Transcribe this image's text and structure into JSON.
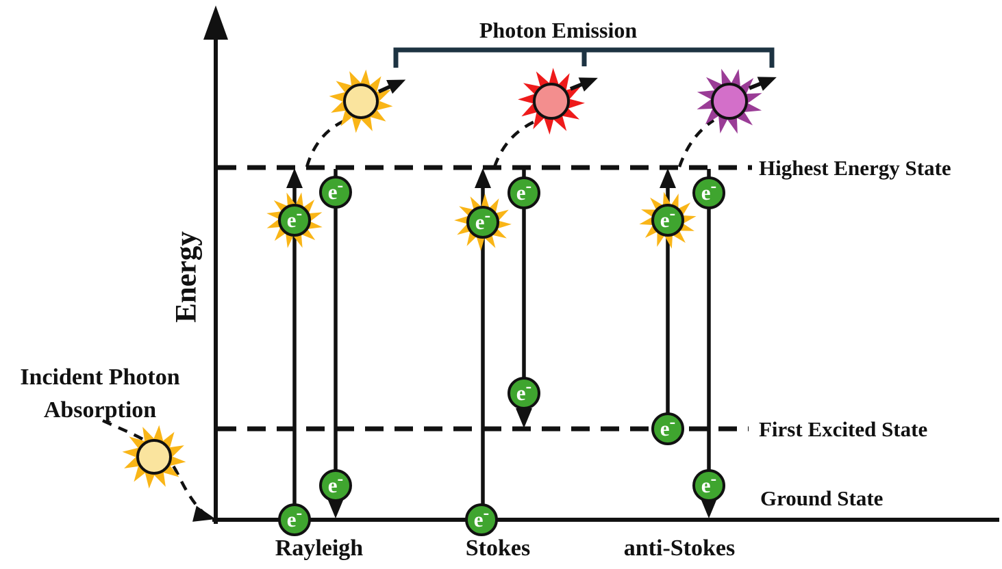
{
  "labels": {
    "photon_emission": "Photon Emission",
    "energy": "Energy",
    "incident_line1": "Incident Photon",
    "incident_line2": "Absorption",
    "highest_state": "Highest Energy State",
    "first_excited_state": "First Excited State",
    "ground_state": "Ground State",
    "rayleigh": "Rayleigh",
    "stokes": "Stokes",
    "anti_stokes": "anti-Stokes",
    "electron_e": "e",
    "electron_minus": "-"
  },
  "colors": {
    "photon_yellow_spikes": "#f9b517",
    "photon_yellow_core": "#fae49e",
    "photon_red_spikes": "#ee1b1b",
    "photon_red_core": "#f38e8e",
    "photon_purple_spikes": "#9a3c96",
    "photon_purple_core": "#d36fc9",
    "electron_green": "#3fa52f",
    "bracket_navy": "#1d3342",
    "line_black": "#111111"
  }
}
